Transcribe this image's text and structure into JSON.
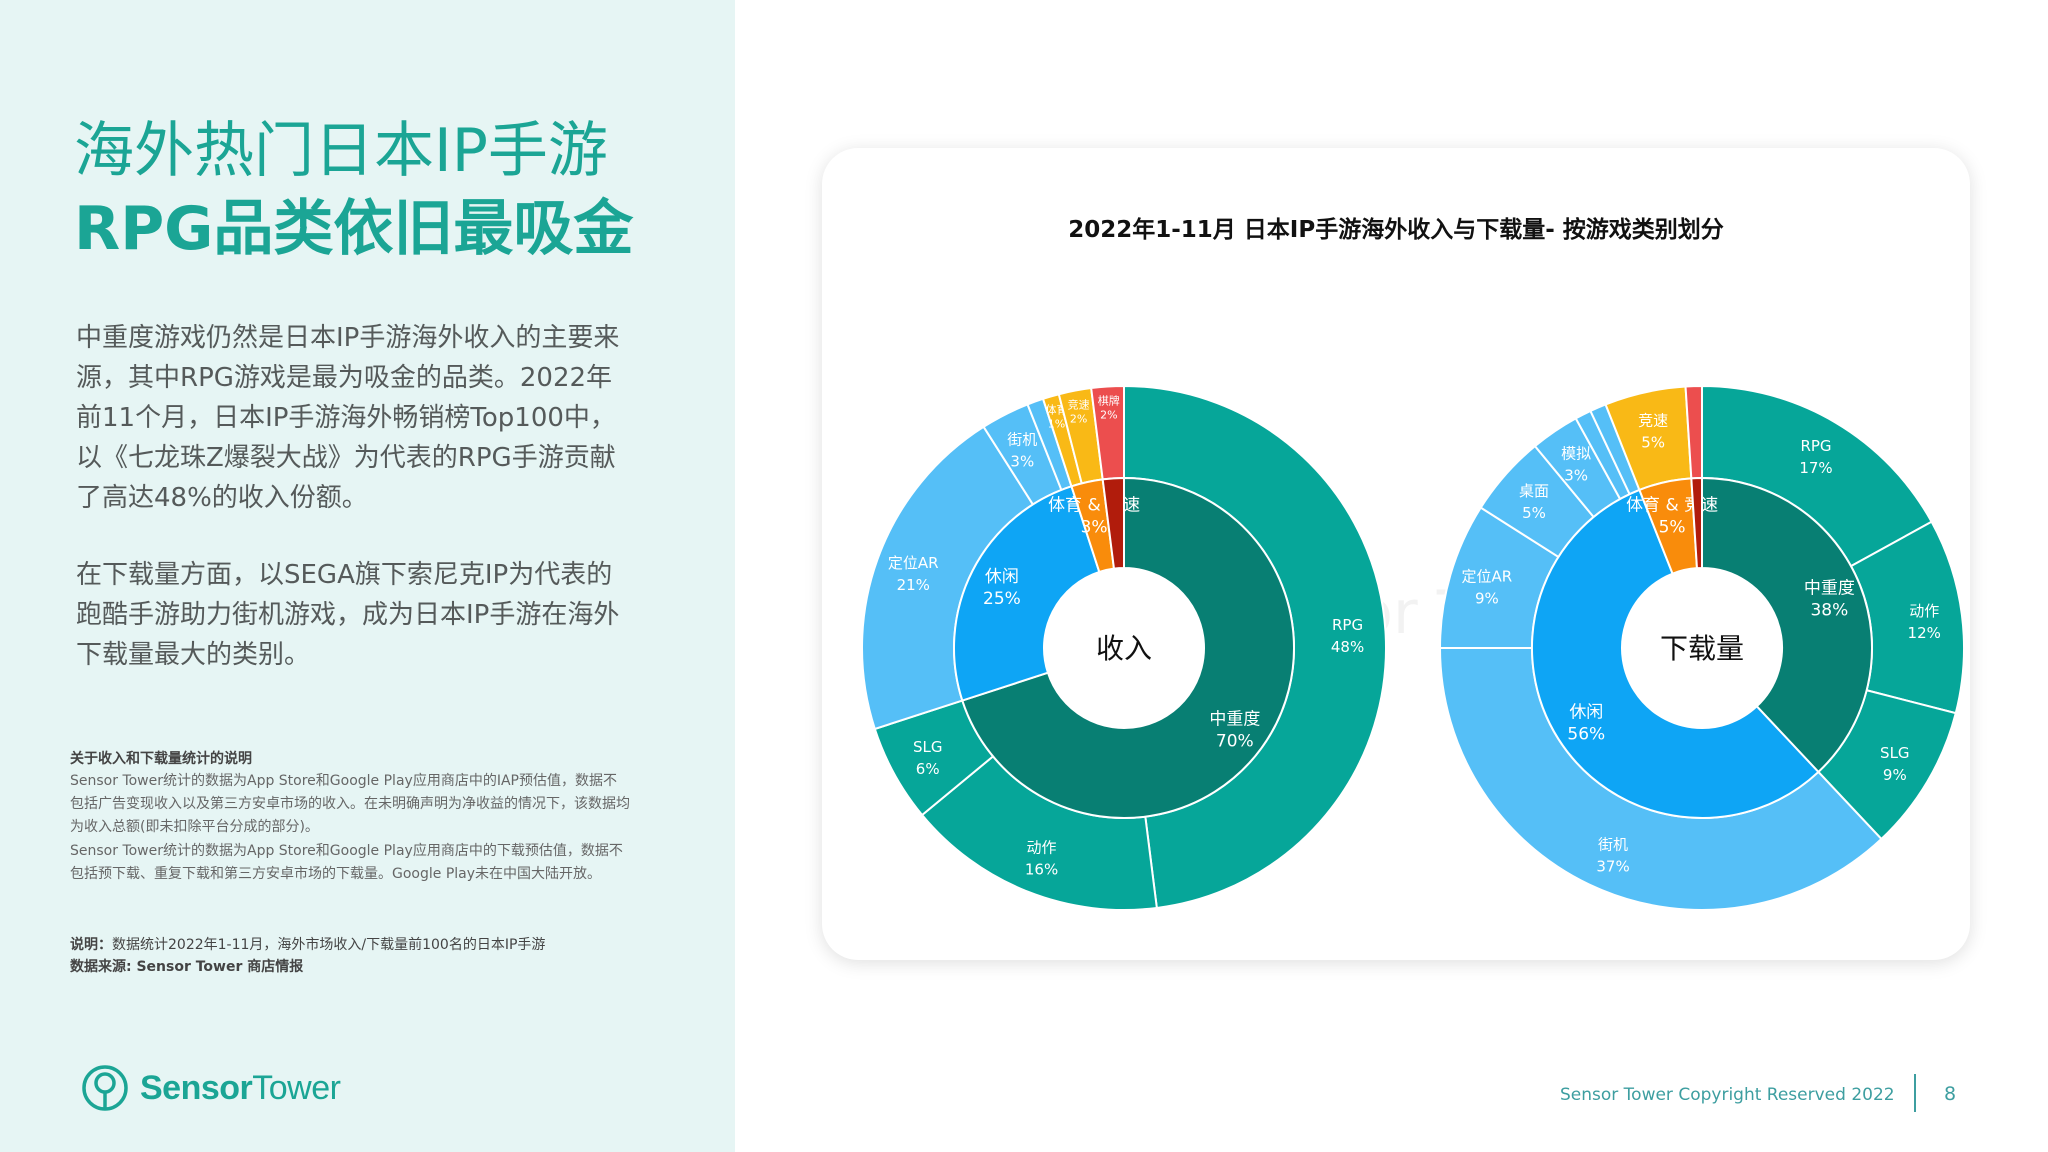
{
  "left": {
    "title_line1": "海外热门日本IP手游",
    "title_line2": "RPG品类依旧最吸金",
    "paragraph1": "中重度游戏仍然是日本IP手游海外收入的主要来源，其中RPG游戏是最为吸金的品类。2022年前11个月，日本IP手游海外畅销榜Top100中，以《七龙珠Z爆裂大战》为代表的RPG手游贡献了高达48%的收入份额。",
    "paragraph2": "在下载量方面，以SEGA旗下索尼克IP为代表的跑酷手游助力街机游戏，成为日本IP手游在海外下载量最大的类别。",
    "note_heading": "关于收入和下载量统计的说明",
    "note_text1": "Sensor Tower统计的数据为App Store和Google Play应用商店中的IAP预估值，数据不包括广告变现收入以及第三方安卓市场的收入。在未明确声明为净收益的情况下，该数据均为收入总额(即未扣除平台分成的部分)。",
    "note_text2": "Sensor Tower统计的数据为App Store和Google Play应用商店中的下载预估值，数据不包括预下载、重复下载和第三方安卓市场的下载量。Google Play未在中国大陆开放。",
    "footnote_label": "说明：",
    "footnote_text": "数据统计2022年1-11月，海外市场收入/下载量前100名的日本IP手游",
    "source_text": "数据来源: Sensor Tower 商店情报",
    "logo_text_bold": "Sensor",
    "logo_text_regular": "Tower"
  },
  "footer": {
    "copyright": "Sensor Tower Copyright Reserved 2022",
    "page_number": "8"
  },
  "colors": {
    "teal_dark": "#087f73",
    "teal": "#06a699",
    "blue": "#0ea5f5",
    "blue_light": "#55bff7",
    "orange": "#f98c0b",
    "orange_light": "#f9b916",
    "red_dark": "#b11c0c",
    "red": "#ec4e4e",
    "brand": "#1ba595"
  },
  "chart_data": {
    "type": "sunburst",
    "title": "2022年1-11月 日本IP手游海外收入与下载量- 按游戏类别划分",
    "watermark": "Sensor Tower",
    "charts": [
      {
        "center_label": "收入",
        "inner": [
          {
            "name": "中重度",
            "value": 70,
            "pct_label": "70%",
            "color": "#087f73"
          },
          {
            "name": "休闲",
            "value": 25,
            "pct_label": "25%",
            "color": "#0ea5f5"
          },
          {
            "name": "体育 & 竞速",
            "value": 3,
            "pct_label": "3%",
            "color": "#f98c0b"
          },
          {
            "name": "",
            "value": 2,
            "pct_label": "",
            "color": "#b11c0c"
          }
        ],
        "outer": [
          {
            "name": "RPG",
            "value": 48,
            "pct_label": "48%",
            "color": "#06a699"
          },
          {
            "name": "动作",
            "value": 16,
            "pct_label": "16%",
            "color": "#06a699"
          },
          {
            "name": "SLG",
            "value": 6,
            "pct_label": "6%",
            "color": "#06a699"
          },
          {
            "name": "定位AR",
            "value": 21,
            "pct_label": "21%",
            "color": "#55bff7"
          },
          {
            "name": "街机",
            "value": 3,
            "pct_label": "3%",
            "color": "#55bff7"
          },
          {
            "name": "",
            "value": 1,
            "pct_label": "",
            "color": "#55bff7"
          },
          {
            "name": "体育",
            "value": 1,
            "pct_label": "1%",
            "color": "#f9b916"
          },
          {
            "name": "竞速",
            "value": 2,
            "pct_label": "2%",
            "color": "#f9b916"
          },
          {
            "name": "棋牌",
            "value": 2,
            "pct_label": "2%",
            "color": "#ec4e4e"
          }
        ]
      },
      {
        "center_label": "下载量",
        "inner": [
          {
            "name": "中重度",
            "value": 38,
            "pct_label": "38%",
            "color": "#087f73"
          },
          {
            "name": "休闲",
            "value": 56,
            "pct_label": "56%",
            "color": "#0ea5f5"
          },
          {
            "name": "体育 & 竞速",
            "value": 5,
            "pct_label": "5%",
            "color": "#f98c0b"
          },
          {
            "name": "",
            "value": 1,
            "pct_label": "",
            "color": "#b11c0c"
          }
        ],
        "outer": [
          {
            "name": "RPG",
            "value": 17,
            "pct_label": "17%",
            "color": "#06a699"
          },
          {
            "name": "动作",
            "value": 12,
            "pct_label": "12%",
            "color": "#06a699"
          },
          {
            "name": "SLG",
            "value": 9,
            "pct_label": "9%",
            "color": "#06a699"
          },
          {
            "name": "街机",
            "value": 37,
            "pct_label": "37%",
            "color": "#55bff7"
          },
          {
            "name": "定位AR",
            "value": 9,
            "pct_label": "9%",
            "color": "#55bff7"
          },
          {
            "name": "桌面",
            "value": 5,
            "pct_label": "5%",
            "color": "#55bff7"
          },
          {
            "name": "模拟",
            "value": 3,
            "pct_label": "3%",
            "color": "#55bff7"
          },
          {
            "name": "",
            "value": 1,
            "pct_label": "",
            "color": "#55bff7"
          },
          {
            "name": "",
            "value": 1,
            "pct_label": "",
            "color": "#55bff7"
          },
          {
            "name": "竞速",
            "value": 5,
            "pct_label": "5%",
            "color": "#f9b916"
          },
          {
            "name": "",
            "value": 1,
            "pct_label": "",
            "color": "#ec4e4e"
          }
        ]
      }
    ]
  }
}
